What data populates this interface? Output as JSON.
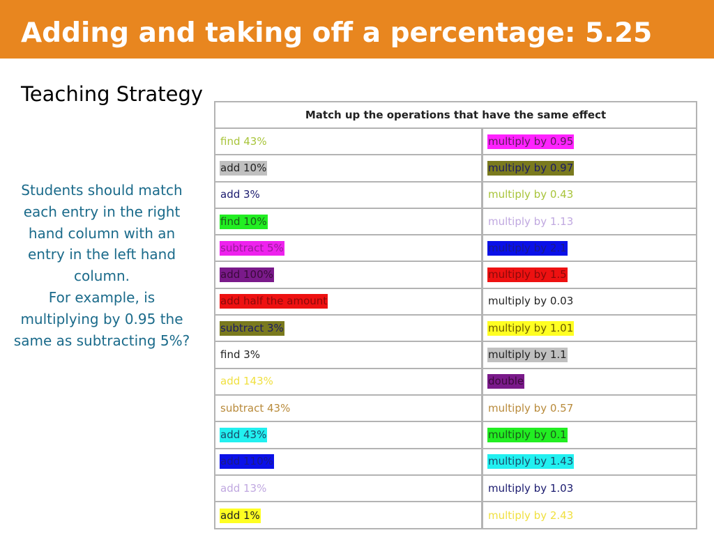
{
  "slide": {
    "title": "Adding and taking off a percentage: 5.25",
    "subtitle": "Teaching Strategy",
    "notes": [
      "Students should match each entry in the right hand column with an entry in the left hand column.",
      "For example, is multiplying by 0.95 the same as subtracting 5%?"
    ],
    "colors": {
      "title_bar": "#e8861f",
      "notes_text": "#1a6a8a",
      "grid": "#b3b3b3"
    }
  },
  "table": {
    "header": "Match up the operations that have the same effect",
    "rows": [
      {
        "left": {
          "text": "find 43%",
          "color": "#a8c43a",
          "bg": ""
        },
        "right": {
          "text": "multiply by 0.95",
          "color": "#5a1a5a",
          "bg": "#ff22ff"
        }
      },
      {
        "left": {
          "text": "add 10%",
          "color": "#222222",
          "bg": "#c0c0c0"
        },
        "right": {
          "text": "multiply by 0.97",
          "color": "#1a1a66",
          "bg": "#7a7a1e"
        }
      },
      {
        "left": {
          "text": "add 3%",
          "color": "#1a1a6e",
          "bg": ""
        },
        "right": {
          "text": "multiply by 0.43",
          "color": "#a8c43a",
          "bg": ""
        }
      },
      {
        "left": {
          "text": "find 10%",
          "color": "#1a5a1a",
          "bg": "#22ee22"
        },
        "right": {
          "text": "multiply by 1.13",
          "color": "#c0a8e0",
          "bg": ""
        }
      },
      {
        "left": {
          "text": "subtract 5%",
          "color": "#9a1a9a",
          "bg": "#ee22ee"
        },
        "right": {
          "text": "multiply by 2.1",
          "color": "#1a1a88",
          "bg": "#0a10e8"
        }
      },
      {
        "left": {
          "text": "add 100%",
          "color": "#3a0a3a",
          "bg": "#7a1a8a"
        },
        "right": {
          "text": "multiply by 1.5",
          "color": "#8a0a0a",
          "bg": "#ee1111"
        }
      },
      {
        "left": {
          "text": "add half the amount",
          "color": "#8a0a0a",
          "bg": "#ee1111"
        },
        "right": {
          "text": "multiply by 0.03",
          "color": "#222222",
          "bg": ""
        }
      },
      {
        "left": {
          "text": "subtract 3%",
          "color": "#1a1a66",
          "bg": "#7a7a1e"
        },
        "right": {
          "text": "multiply by 1.01",
          "color": "#6a5a00",
          "bg": "#ffff22"
        }
      },
      {
        "left": {
          "text": "find 3%",
          "color": "#222222",
          "bg": ""
        },
        "right": {
          "text": "multiply by 1.1",
          "color": "#222222",
          "bg": "#c0c0c0"
        }
      },
      {
        "left": {
          "text": "add 143%",
          "color": "#f0e040",
          "bg": ""
        },
        "right": {
          "text": "double",
          "color": "#3a0a3a",
          "bg": "#7a1a8a"
        }
      },
      {
        "left": {
          "text": "subtract 43%",
          "color": "#b88a3a",
          "bg": ""
        },
        "right": {
          "text": "multiply by 0.57",
          "color": "#b88a3a",
          "bg": ""
        }
      },
      {
        "left": {
          "text": "add 43%",
          "color": "#1a4a6a",
          "bg": "#22f0f0"
        },
        "right": {
          "text": "multiply by 0.1",
          "color": "#1a5a1a",
          "bg": "#22ee22"
        }
      },
      {
        "left": {
          "text": "add 110%",
          "color": "#1a1a88",
          "bg": "#0a10e8"
        },
        "right": {
          "text": "multiply by 1.43",
          "color": "#1a4a6a",
          "bg": "#22f0f0"
        }
      },
      {
        "left": {
          "text": "add 13%",
          "color": "#c0a8e0",
          "bg": ""
        },
        "right": {
          "text": "multiply by 1.03",
          "color": "#1a1a6e",
          "bg": ""
        }
      },
      {
        "left": {
          "text": "add 1%",
          "color": "#222222",
          "bg": "#ffff22"
        },
        "right": {
          "text": "multiply by 2.43",
          "color": "#f0e040",
          "bg": ""
        }
      }
    ]
  }
}
